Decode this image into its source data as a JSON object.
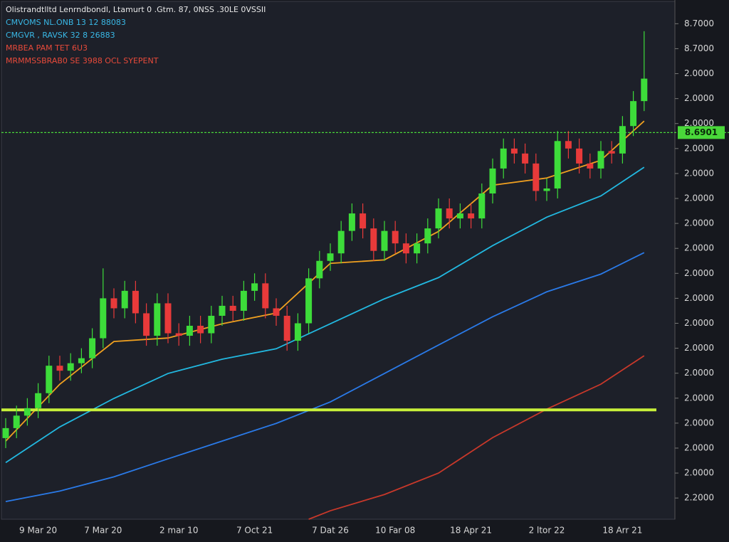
{
  "chart_data": {
    "type": "candlestick",
    "legend": [
      {
        "text": "Olistrandtlltd  Lenrndbondl, Ltamurt 0 .Gtm. 87,  0NSS  .30LE 0VSSII",
        "color": "#e8e8e8"
      },
      {
        "text": "CMVOMS  NL.ONB  13  12  88083",
        "color": "#39b8e6"
      },
      {
        "text": "CMGVR  , RAVSK  32 8 26883",
        "color": "#39b8e6"
      },
      {
        "text": "MRBEA   PAM  TET  6U3",
        "color": "#e84a3a"
      },
      {
        "text": "MRMMSSBRAB0 SE 3988  OCL SYEPENT",
        "color": "#e84a3a"
      }
    ],
    "categories": [
      null,
      null,
      null,
      "9 Mar 20",
      null,
      null,
      null,
      null,
      null,
      "7 Mar 20",
      null,
      null,
      null,
      null,
      null,
      null,
      "2 mar 10",
      null,
      null,
      null,
      null,
      null,
      null,
      "7 Oct 21",
      null,
      null,
      null,
      null,
      null,
      null,
      "7 Dat 26",
      null,
      null,
      null,
      null,
      null,
      "10 Far 08",
      null,
      null,
      null,
      null,
      null,
      null,
      "18 Apr 21",
      null,
      null,
      null,
      null,
      null,
      null,
      "2 ltor 22",
      null,
      null,
      null,
      null,
      null,
      null,
      "18 Arr 21",
      null,
      null
    ],
    "open": [
      3.4,
      3.8,
      4.3,
      4.6,
      5.2,
      6.3,
      6.1,
      6.4,
      6.6,
      7.4,
      9.0,
      8.6,
      9.3,
      8.4,
      7.5,
      8.8,
      7.6,
      7.5,
      7.9,
      7.6,
      8.3,
      8.7,
      8.5,
      9.3,
      9.6,
      8.6,
      8.3,
      7.3,
      8.0,
      9.8,
      10.5,
      10.8,
      11.7,
      12.4,
      11.8,
      10.9,
      11.7,
      11.2,
      10.8,
      11.2,
      11.8,
      12.6,
      12.2,
      12.4,
      12.2,
      13.2,
      14.2,
      15.0,
      14.8,
      14.4,
      13.3,
      13.4,
      15.3,
      15.0,
      14.4,
      14.2,
      14.9,
      14.8,
      15.9,
      16.9
    ],
    "high": [
      4.2,
      4.7,
      5.0,
      5.6,
      6.7,
      6.7,
      6.8,
      7.0,
      7.8,
      10.2,
      9.4,
      9.7,
      9.7,
      8.8,
      9.2,
      9.2,
      8.0,
      8.3,
      8.3,
      8.7,
      9.1,
      9.1,
      9.7,
      10.0,
      10.0,
      9.0,
      8.7,
      8.4,
      10.2,
      10.9,
      11.2,
      12.1,
      12.8,
      12.8,
      12.2,
      12.1,
      12.1,
      11.6,
      11.6,
      12.2,
      13.0,
      13.0,
      12.8,
      12.8,
      13.6,
      14.6,
      15.4,
      15.4,
      15.2,
      14.8,
      13.8,
      15.7,
      15.7,
      15.4,
      14.8,
      15.3,
      15.3,
      16.3,
      17.3,
      19.7
    ],
    "low": [
      3.0,
      3.4,
      3.9,
      4.2,
      4.8,
      5.7,
      5.7,
      6.0,
      6.2,
      7.0,
      8.2,
      8.2,
      8.0,
      7.1,
      7.1,
      7.2,
      7.1,
      7.1,
      7.2,
      7.2,
      7.9,
      8.1,
      8.1,
      8.9,
      8.2,
      7.9,
      6.9,
      6.9,
      7.6,
      9.4,
      10.1,
      10.4,
      11.3,
      11.4,
      10.5,
      10.5,
      10.8,
      10.4,
      10.4,
      10.8,
      11.4,
      11.8,
      11.8,
      11.8,
      11.8,
      12.8,
      13.8,
      14.4,
      14.0,
      12.9,
      12.9,
      13.0,
      14.6,
      14.0,
      13.8,
      13.8,
      14.4,
      14.4,
      15.5,
      16.5
    ],
    "close": [
      3.8,
      4.3,
      4.6,
      5.2,
      6.3,
      6.1,
      6.4,
      6.6,
      7.4,
      9.0,
      8.6,
      9.3,
      8.4,
      7.5,
      8.8,
      7.6,
      7.5,
      7.9,
      7.6,
      8.3,
      8.7,
      8.5,
      9.3,
      9.6,
      8.6,
      8.3,
      7.3,
      8.0,
      9.8,
      10.5,
      10.8,
      11.7,
      12.4,
      11.8,
      10.9,
      11.7,
      11.2,
      10.8,
      11.2,
      11.8,
      12.6,
      12.2,
      12.4,
      12.2,
      13.2,
      14.2,
      15.0,
      14.8,
      14.4,
      13.3,
      13.4,
      15.3,
      15.0,
      14.4,
      14.2,
      14.9,
      14.8,
      15.9,
      16.9,
      17.8
    ],
    "up_color": "#3ddc3a",
    "down_color": "#e83a3a",
    "lines": [
      {
        "color": "#c8382a",
        "x": [
          28,
          30,
          35,
          40,
          45,
          50,
          55,
          59
        ],
        "values": [
          0.15,
          0.49,
          1.14,
          2.0,
          3.42,
          4.56,
          5.56,
          6.7
        ]
      },
      {
        "color": "#2a7ae8",
        "x": [
          0,
          5,
          10,
          15,
          20,
          25,
          30,
          35,
          40,
          45,
          50,
          55,
          59
        ],
        "values": [
          0.86,
          1.28,
          1.85,
          2.57,
          3.28,
          3.99,
          4.85,
          5.99,
          7.13,
          8.26,
          9.26,
          9.97,
          10.83
        ]
      },
      {
        "color": "#22b8e0",
        "x": [
          0,
          5,
          10,
          15,
          20,
          25,
          30,
          35,
          40,
          45,
          50,
          55,
          59
        ],
        "values": [
          2.42,
          3.85,
          4.99,
          5.99,
          6.56,
          6.98,
          7.98,
          8.98,
          9.83,
          11.11,
          12.25,
          13.1,
          14.25
        ]
      },
      {
        "color": "#f0a020",
        "x": [
          0,
          5,
          10,
          15,
          20,
          25,
          30,
          35,
          40,
          45,
          50,
          55,
          59
        ],
        "values": [
          3.28,
          5.56,
          7.27,
          7.41,
          7.98,
          8.41,
          10.4,
          10.54,
          11.68,
          13.53,
          13.82,
          14.53,
          16.1
        ]
      }
    ],
    "levels": [
      {
        "value": 4.53,
        "color": "#c8f03a",
        "style": "solid"
      },
      {
        "value": 15.64,
        "color": "#4ad83a",
        "style": "dashed"
      }
    ],
    "level_label": "8.6901",
    "ylim": [
      0.15,
      20.95
    ],
    "yticks": [
      {
        "value": 20,
        "label": "8.7000"
      },
      {
        "value": 19,
        "label": "8.7000"
      },
      {
        "value": 18,
        "label": "2.0000"
      },
      {
        "value": 17,
        "label": "2.0000"
      },
      {
        "value": 16,
        "label": "2.0000"
      },
      {
        "value": 15,
        "label": "2.0000"
      },
      {
        "value": 14,
        "label": "2.0000"
      },
      {
        "value": 13,
        "label": "2.0000"
      },
      {
        "value": 12,
        "label": "2.0000"
      },
      {
        "value": 11,
        "label": "2.0000"
      },
      {
        "value": 10,
        "label": "2.0000"
      },
      {
        "value": 9,
        "label": "2.0000"
      },
      {
        "value": 8,
        "label": "2.0000"
      },
      {
        "value": 7,
        "label": "2.0000"
      },
      {
        "value": 6,
        "label": "2.0000"
      },
      {
        "value": 5,
        "label": "2.0000"
      },
      {
        "value": 4,
        "label": "2.0000"
      },
      {
        "value": 3,
        "label": "2.0000"
      },
      {
        "value": 2,
        "label": "2.0000"
      },
      {
        "value": 1,
        "label": "2.2000"
      }
    ]
  }
}
